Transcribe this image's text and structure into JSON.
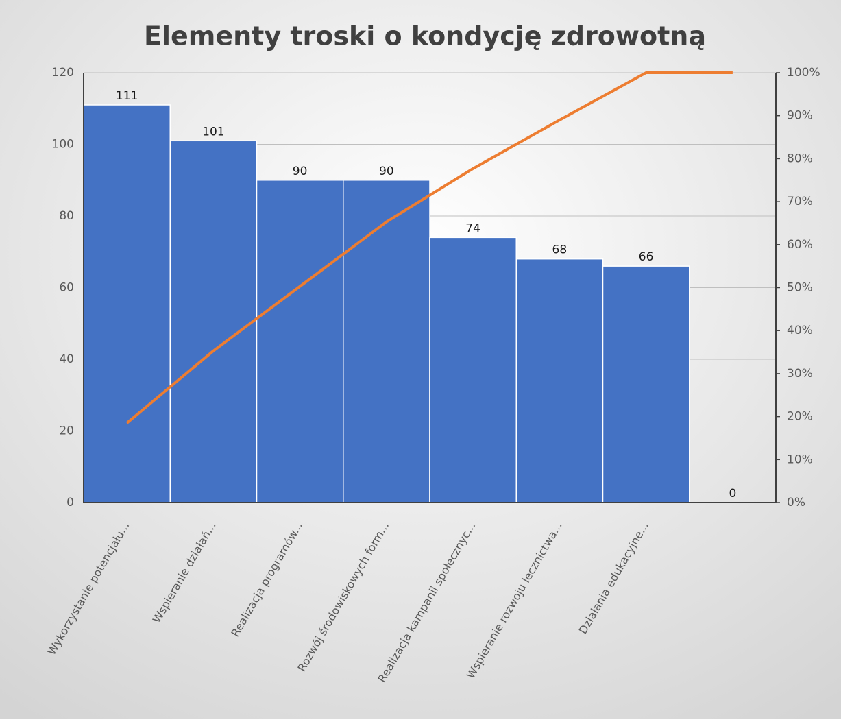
{
  "chart_data": {
    "type": "bar",
    "title": "Elementy troski o kondycję zdrowotną",
    "categories": [
      "Wykorzystanie potencjału...",
      "Wspieranie działań...",
      "Realizacja programów...",
      "Rozwój środowiskowych form...",
      "Realizacja kampanii społecznyc...",
      "Wspieranie rozwoju lecznictwa...",
      "Działania edukacyjne...",
      null
    ],
    "series": [
      {
        "color": "#4472c4",
        "values": [
          111,
          101,
          90,
          90,
          74,
          68,
          66,
          0
        ]
      },
      {
        "type": "line",
        "axis": "y2",
        "color": "#ed7d31",
        "values": [
          18.5,
          35.3,
          50.3,
          65.3,
          77.7,
          89,
          100,
          100
        ]
      }
    ],
    "ylim": [
      0,
      120
    ],
    "yticks": [
      0,
      20,
      40,
      60,
      80,
      100,
      120
    ],
    "y2lim": [
      0,
      100
    ],
    "y2ticks": [
      {
        "value": 0,
        "label": "0%"
      },
      {
        "value": 10,
        "label": "10%"
      },
      {
        "value": 20,
        "label": "20%"
      },
      {
        "value": 30,
        "label": "30%"
      },
      {
        "value": 40,
        "label": "40%"
      },
      {
        "value": 50,
        "label": "50%"
      },
      {
        "value": 60,
        "label": "60%"
      },
      {
        "value": 70,
        "label": "70%"
      },
      {
        "value": 80,
        "label": "80%"
      },
      {
        "value": 90,
        "label": "90%"
      },
      {
        "value": 100,
        "label": "100%"
      }
    ],
    "grid": true
  }
}
